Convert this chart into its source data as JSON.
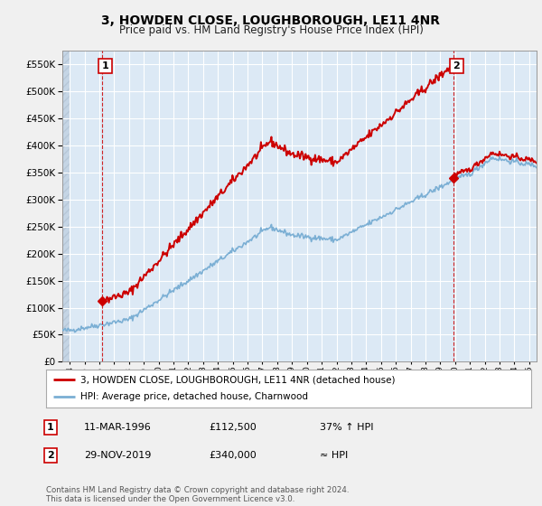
{
  "title": "3, HOWDEN CLOSE, LOUGHBOROUGH, LE11 4NR",
  "subtitle": "Price paid vs. HM Land Registry's House Price Index (HPI)",
  "ytick_values": [
    0,
    50000,
    100000,
    150000,
    200000,
    250000,
    300000,
    350000,
    400000,
    450000,
    500000,
    550000
  ],
  "ylim": [
    0,
    575000
  ],
  "xlim_start": 1993.5,
  "xlim_end": 2025.5,
  "xticks": [
    1994,
    1995,
    1996,
    1997,
    1998,
    1999,
    2000,
    2001,
    2002,
    2003,
    2004,
    2005,
    2006,
    2007,
    2008,
    2009,
    2010,
    2011,
    2012,
    2013,
    2014,
    2015,
    2016,
    2017,
    2018,
    2019,
    2020,
    2021,
    2022,
    2023,
    2024,
    2025
  ],
  "transaction1_x": 1996.2,
  "transaction1_y": 112500,
  "transaction1_label": "1",
  "transaction2_x": 2019.9,
  "transaction2_y": 340000,
  "transaction2_label": "2",
  "legend_line1": "3, HOWDEN CLOSE, LOUGHBOROUGH, LE11 4NR (detached house)",
  "legend_line2": "HPI: Average price, detached house, Charnwood",
  "note1_label": "1",
  "note1_date": "11-MAR-1996",
  "note1_price": "£112,500",
  "note1_info": "37% ↑ HPI",
  "note2_label": "2",
  "note2_date": "29-NOV-2019",
  "note2_price": "£340,000",
  "note2_info": "≈ HPI",
  "copyright": "Contains HM Land Registry data © Crown copyright and database right 2024.\nThis data is licensed under the Open Government Licence v3.0.",
  "property_line_color": "#cc0000",
  "hpi_line_color": "#7bafd4",
  "background_color": "#f0f0f0",
  "plot_bg_color": "#dce9f5",
  "hatch_color": "#b8c8d8",
  "grid_color": "#ffffff",
  "vline_color": "#cc0000",
  "marker_box_color": "#cc0000",
  "title_fontsize": 10,
  "subtitle_fontsize": 8.5
}
